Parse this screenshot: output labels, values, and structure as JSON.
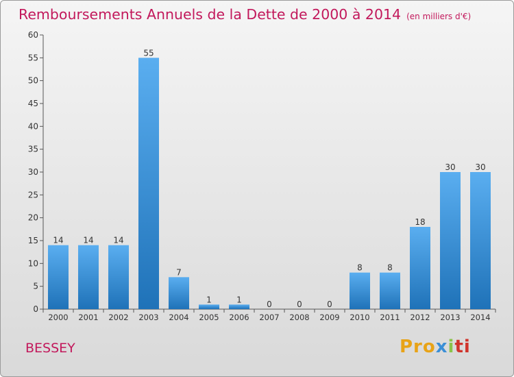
{
  "chart_data": {
    "type": "bar",
    "title": "Remboursements Annuels de la Dette de 2000 à 2014",
    "unit": "(en milliers d'€)",
    "categories": [
      "2000",
      "2001",
      "2002",
      "2003",
      "2004",
      "2005",
      "2006",
      "2007",
      "2008",
      "2009",
      "2010",
      "2011",
      "2012",
      "2013",
      "2014"
    ],
    "values": [
      14,
      14,
      14,
      55,
      7,
      1,
      1,
      0,
      0,
      0,
      8,
      8,
      18,
      30,
      30
    ],
    "ylim": [
      0,
      60
    ],
    "yticks": [
      0,
      5,
      10,
      15,
      20,
      25,
      30,
      35,
      40,
      45,
      50,
      55,
      60
    ],
    "xlabel": "",
    "ylabel": "",
    "grid": false,
    "bar_color_top": "#5aaef0",
    "bar_color_bottom": "#1f72b8"
  },
  "place": "BESSEY",
  "logo": {
    "text": "Proxiti",
    "parts": [
      "Pro",
      "x",
      "i",
      "ti"
    ]
  }
}
